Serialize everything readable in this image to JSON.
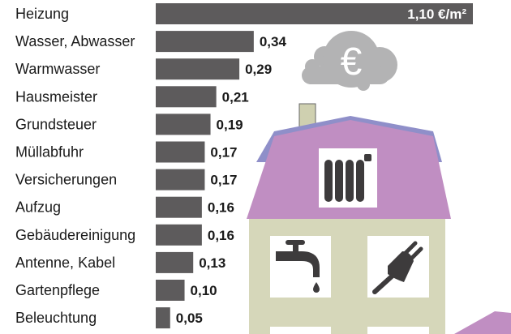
{
  "chart_data": {
    "type": "bar",
    "orientation": "horizontal",
    "categories": [
      "Heizung",
      "Wasser, Abwasser",
      "Warmwasser",
      "Hausmeister",
      "Grundsteuer",
      "Müllabfuhr",
      "Versicherungen",
      "Aufzug",
      "Gebäudereinigung",
      "Antenne, Kabel",
      "Gartenpflege",
      "Beleuchtung"
    ],
    "values": [
      1.1,
      0.34,
      0.29,
      0.21,
      0.19,
      0.17,
      0.17,
      0.16,
      0.16,
      0.13,
      0.1,
      0.05
    ],
    "value_labels": [
      "1,10 €/m²",
      "0,34",
      "0,29",
      "0,21",
      "0,19",
      "0,17",
      "0,17",
      "0,16",
      "0,16",
      "0,13",
      "0,10",
      "0,05"
    ],
    "xlim": [
      0,
      1.1
    ],
    "grid": false,
    "colors": {
      "bar": "#5d5b5c",
      "roof": "#c08ec2",
      "roof_top": "#8f8fc9",
      "wall": "#d6d7ba",
      "window": "#ffffff",
      "icon": "#3d3b3c",
      "cloud": "#b3b3b4",
      "chimney": "#cfd0b0"
    },
    "icons": [
      "cloud-euro-icon",
      "radiator-icon",
      "faucet-icon",
      "plug-icon"
    ],
    "cloud_symbol": "€"
  }
}
